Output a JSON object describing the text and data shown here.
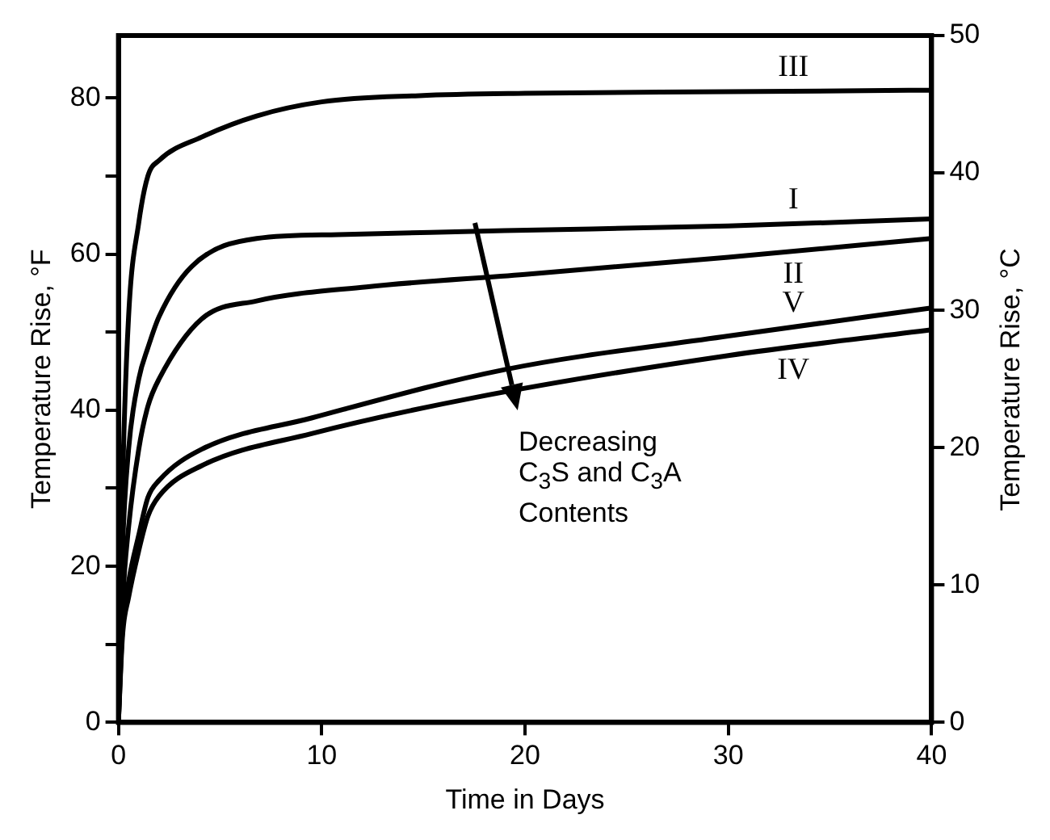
{
  "chart_data": {
    "type": "line",
    "xlabel": "Time in Days",
    "ylabel": "Temperature Rise, °F",
    "y2label": "Temperature Rise, °C",
    "xlim": [
      0,
      40
    ],
    "xticks": [
      0,
      10,
      20,
      30,
      40
    ],
    "ylim": [
      0,
      88
    ],
    "yticks": [
      0,
      {
        "value": 10,
        "label": null
      },
      20,
      {
        "value": 30,
        "label": null
      },
      40,
      {
        "value": 50,
        "label": null
      },
      60,
      {
        "value": 70,
        "label": null
      },
      80
    ],
    "y2lim": [
      0,
      50
    ],
    "y2ticks": [
      0,
      10,
      20,
      30,
      40,
      50
    ],
    "grid": false,
    "legend": false,
    "marker": "none",
    "line_style": "solid",
    "annotations": [
      "Decreasing C$_{3}$S and C$_{3}$A Contents"
    ],
    "series": [
      {
        "name": "III",
        "color": "#000000",
        "x": [
          0,
          0.2,
          0.5,
          1,
          1.45,
          2,
          4.1,
          6.8,
          10,
          14.8,
          20,
          30,
          40
        ],
        "values": [
          0,
          30,
          52,
          64,
          70,
          72,
          75,
          77.7,
          79.5,
          80.3,
          80.6,
          80.8,
          81
        ]
      },
      {
        "name": "I",
        "color": "#000000",
        "x": [
          0,
          0.2,
          0.5,
          1,
          1.45,
          2,
          3.6,
          6.8,
          10.8,
          19,
          30,
          40
        ],
        "values": [
          0,
          22,
          35,
          44,
          48,
          52,
          58.4,
          62,
          62.5,
          63,
          63.6,
          64.5
        ]
      },
      {
        "name": "II",
        "color": "#000000",
        "x": [
          0,
          0.2,
          0.5,
          1,
          1.45,
          2,
          4.1,
          6.8,
          12.2,
          20,
          30,
          40
        ],
        "values": [
          0,
          15,
          25,
          35,
          40.5,
          44,
          51.7,
          54,
          55.8,
          57.4,
          59.6,
          62
        ]
      },
      {
        "name": "V",
        "color": "#000000",
        "x": [
          0,
          0.2,
          0.5,
          1,
          1.45,
          2,
          4.1,
          9.5,
          19,
          30,
          40
        ],
        "values": [
          0,
          12,
          18,
          24,
          28.8,
          31,
          35,
          39,
          45.2,
          49.5,
          53.1
        ]
      },
      {
        "name": "IV",
        "color": "#000000",
        "x": [
          0,
          0.2,
          0.5,
          1,
          1.45,
          2,
          4.1,
          9.5,
          17.5,
          30,
          40
        ],
        "values": [
          0,
          11,
          16,
          22,
          26.4,
          29,
          32.9,
          37,
          41.6,
          47,
          50.3
        ]
      }
    ]
  }
}
